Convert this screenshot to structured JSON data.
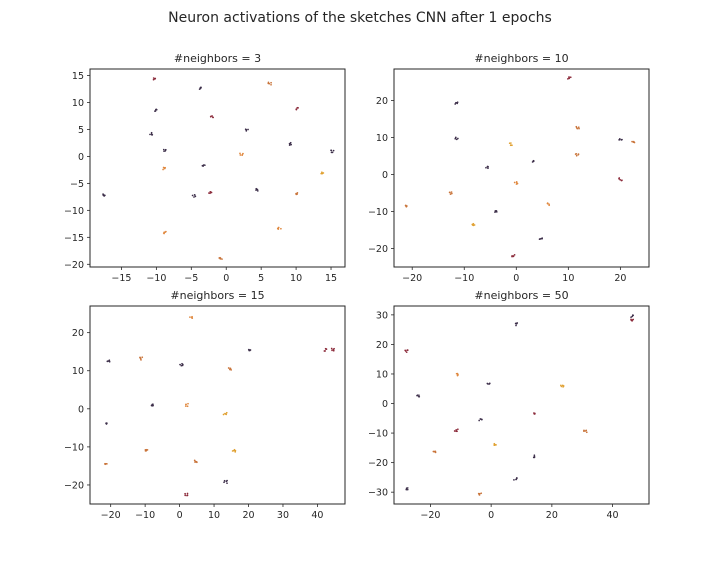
{
  "figure": {
    "title": "Neuron activations of the sketches CNN after 1 epochs"
  },
  "chart_data": [
    {
      "type": "scatter",
      "title": "#neighbors = 3",
      "xlim": [
        -19.5,
        17
      ],
      "ylim": [
        -20.5,
        16.2
      ],
      "xticks": [
        -15,
        -10,
        -5,
        0,
        5,
        10,
        15
      ],
      "yticks": [
        -20,
        -15,
        -10,
        -5,
        0,
        5,
        10,
        15
      ],
      "grid": false,
      "clusters": [
        {
          "x": -10.2,
          "y": 14.4,
          "color": "#8b2a3a"
        },
        {
          "x": -3.7,
          "y": 12.6,
          "color": "#3d2f4a"
        },
        {
          "x": 6.2,
          "y": 13.5,
          "color": "#c9743a"
        },
        {
          "x": 10.2,
          "y": 8.9,
          "color": "#8b2a3a"
        },
        {
          "x": -10.0,
          "y": 8.6,
          "color": "#3d2f4a"
        },
        {
          "x": -2.0,
          "y": 7.3,
          "color": "#8b2a3a"
        },
        {
          "x": 2.9,
          "y": 4.9,
          "color": "#3d2f4a"
        },
        {
          "x": -10.8,
          "y": 4.2,
          "color": "#3d2f4a"
        },
        {
          "x": 9.2,
          "y": 2.3,
          "color": "#3d2f4a"
        },
        {
          "x": -8.7,
          "y": 1.2,
          "color": "#3d2f4a"
        },
        {
          "x": 2.2,
          "y": 0.4,
          "color": "#e0883f"
        },
        {
          "x": 15.2,
          "y": 0.9,
          "color": "#3d2f4a"
        },
        {
          "x": -3.2,
          "y": -1.8,
          "color": "#3d2f4a"
        },
        {
          "x": -8.8,
          "y": -2.3,
          "color": "#e0883f"
        },
        {
          "x": 13.8,
          "y": -3.0,
          "color": "#e0a030"
        },
        {
          "x": 4.5,
          "y": -6.2,
          "color": "#3d2f4a"
        },
        {
          "x": -2.3,
          "y": -6.6,
          "color": "#8b2a3a"
        },
        {
          "x": 10.0,
          "y": -6.8,
          "color": "#c9743a"
        },
        {
          "x": -17.6,
          "y": -7.2,
          "color": "#3d2f4a"
        },
        {
          "x": -4.6,
          "y": -7.3,
          "color": "#3d2f4a"
        },
        {
          "x": 7.6,
          "y": -13.4,
          "color": "#e0883f"
        },
        {
          "x": -8.8,
          "y": -14.1,
          "color": "#e0883f"
        },
        {
          "x": -0.8,
          "y": -19.0,
          "color": "#c9743a"
        }
      ]
    },
    {
      "type": "scatter",
      "title": "#neighbors = 10",
      "xlim": [
        -23.5,
        25.5
      ],
      "ylim": [
        -25,
        28.5
      ],
      "xticks": [
        -20,
        -10,
        0,
        10,
        20
      ],
      "yticks": [
        -20,
        -10,
        0,
        10,
        20
      ],
      "grid": false,
      "clusters": [
        {
          "x": 10.2,
          "y": 26.0,
          "color": "#8b2a3a"
        },
        {
          "x": -11.5,
          "y": 19.2,
          "color": "#3d2f4a"
        },
        {
          "x": 11.8,
          "y": 12.7,
          "color": "#c9743a"
        },
        {
          "x": -11.5,
          "y": 9.8,
          "color": "#3d2f4a"
        },
        {
          "x": 20.0,
          "y": 9.5,
          "color": "#3d2f4a"
        },
        {
          "x": 22.5,
          "y": 8.8,
          "color": "#c9743a"
        },
        {
          "x": -1.0,
          "y": 8.2,
          "color": "#e0a030"
        },
        {
          "x": 11.7,
          "y": 5.4,
          "color": "#c9743a"
        },
        {
          "x": 3.3,
          "y": 3.4,
          "color": "#3d2f4a"
        },
        {
          "x": -5.5,
          "y": 1.8,
          "color": "#3d2f4a"
        },
        {
          "x": 20.0,
          "y": -1.3,
          "color": "#8b2a3a"
        },
        {
          "x": 0.0,
          "y": -2.3,
          "color": "#e0883f"
        },
        {
          "x": -12.5,
          "y": -5.0,
          "color": "#c9743a"
        },
        {
          "x": 6.3,
          "y": -8.0,
          "color": "#e0883f"
        },
        {
          "x": -21.0,
          "y": -8.5,
          "color": "#c9743a"
        },
        {
          "x": -4.0,
          "y": -10.0,
          "color": "#3d2f4a"
        },
        {
          "x": -8.2,
          "y": -13.5,
          "color": "#e0a030"
        },
        {
          "x": 4.8,
          "y": -17.5,
          "color": "#3d2f4a"
        },
        {
          "x": -0.5,
          "y": -22.0,
          "color": "#8b2a3a"
        }
      ]
    },
    {
      "type": "scatter",
      "title": "#neighbors = 15",
      "xlim": [
        -26,
        48
      ],
      "ylim": [
        -25,
        27
      ],
      "xticks": [
        -20,
        -10,
        0,
        10,
        20,
        30,
        40
      ],
      "yticks": [
        -20,
        -10,
        0,
        10,
        20
      ],
      "grid": false,
      "clusters": [
        {
          "x": 3.2,
          "y": 24.0,
          "color": "#e0883f"
        },
        {
          "x": 20.5,
          "y": 15.5,
          "color": "#3d2f4a"
        },
        {
          "x": 42.5,
          "y": 15.5,
          "color": "#8b2a3a"
        },
        {
          "x": 44.5,
          "y": 15.5,
          "color": "#8b2a3a"
        },
        {
          "x": -11.0,
          "y": 13.2,
          "color": "#c9743a"
        },
        {
          "x": -20.5,
          "y": 12.5,
          "color": "#3d2f4a"
        },
        {
          "x": 0.5,
          "y": 11.5,
          "color": "#3d2f4a"
        },
        {
          "x": 14.5,
          "y": 10.5,
          "color": "#c9743a"
        },
        {
          "x": 2.0,
          "y": 1.0,
          "color": "#e0883f"
        },
        {
          "x": -8.0,
          "y": 1.0,
          "color": "#3d2f4a"
        },
        {
          "x": 13.2,
          "y": -1.3,
          "color": "#e0a030"
        },
        {
          "x": -21.0,
          "y": -4.0,
          "color": "#3d2f4a"
        },
        {
          "x": -9.5,
          "y": -11.0,
          "color": "#c9743a"
        },
        {
          "x": 15.8,
          "y": -11.0,
          "color": "#e0a030"
        },
        {
          "x": 4.8,
          "y": -13.8,
          "color": "#c9743a"
        },
        {
          "x": -21.5,
          "y": -14.3,
          "color": "#c9743a"
        },
        {
          "x": 13.3,
          "y": -19.2,
          "color": "#3d2f4a"
        },
        {
          "x": 2.0,
          "y": -22.5,
          "color": "#8b2a3a"
        }
      ]
    },
    {
      "type": "scatter",
      "title": "#neighbors = 50",
      "xlim": [
        -32,
        52
      ],
      "ylim": [
        -34,
        33
      ],
      "xticks": [
        -20,
        0,
        20,
        40
      ],
      "yticks": [
        -30,
        -20,
        -10,
        0,
        10,
        20,
        30
      ],
      "grid": false,
      "clusters": [
        {
          "x": 46.5,
          "y": 29.5,
          "color": "#3d2f4a"
        },
        {
          "x": 46.5,
          "y": 28.3,
          "color": "#8b2a3a"
        },
        {
          "x": 8.5,
          "y": 26.8,
          "color": "#3d2f4a"
        },
        {
          "x": -28.0,
          "y": 17.7,
          "color": "#8b2a3a"
        },
        {
          "x": -11.0,
          "y": 9.8,
          "color": "#e0883f"
        },
        {
          "x": -0.8,
          "y": 7.0,
          "color": "#3d2f4a"
        },
        {
          "x": 23.5,
          "y": 6.0,
          "color": "#e0a030"
        },
        {
          "x": -24.0,
          "y": 2.5,
          "color": "#3d2f4a"
        },
        {
          "x": 14.0,
          "y": -3.5,
          "color": "#8b2a3a"
        },
        {
          "x": -3.5,
          "y": -5.5,
          "color": "#3d2f4a"
        },
        {
          "x": -11.5,
          "y": -9.0,
          "color": "#8b2a3a"
        },
        {
          "x": 31.0,
          "y": -9.5,
          "color": "#c9743a"
        },
        {
          "x": 1.3,
          "y": -14.0,
          "color": "#e0a030"
        },
        {
          "x": -18.5,
          "y": -16.5,
          "color": "#c9743a"
        },
        {
          "x": 14.3,
          "y": -17.8,
          "color": "#3d2f4a"
        },
        {
          "x": 8.0,
          "y": -25.5,
          "color": "#3d2f4a"
        },
        {
          "x": -27.5,
          "y": -28.8,
          "color": "#3d2f4a"
        },
        {
          "x": -3.8,
          "y": -30.8,
          "color": "#c9743a"
        }
      ]
    }
  ]
}
